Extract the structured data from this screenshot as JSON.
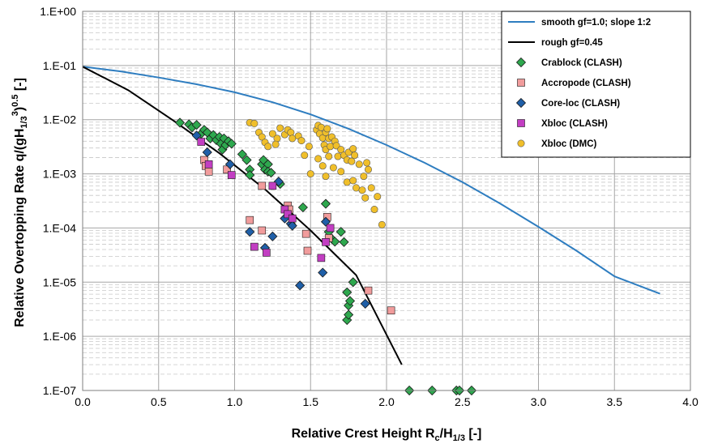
{
  "chart_data": {
    "type": "scatter",
    "xlabel": "Relative Crest Height  R",
    "xlabel_sub": "c",
    "xlabel_mid": "/H",
    "xlabel_sub2": "1/3",
    "xlabel_unit": " [-]",
    "ylabel_main": "Relative Overtopping Rate  q/(gH",
    "ylabel_sub": "1/3",
    "ylabel_sup": "3",
    "ylabel_close": ")",
    "ylabel_sup2": "0.5",
    "ylabel_unit": " [-]",
    "xlim": [
      0,
      4
    ],
    "ylim": [
      1e-07,
      1
    ],
    "y_scale": "log",
    "grid": true,
    "legend_position": "top-right",
    "x_ticks": [
      "0.0",
      "0.5",
      "1.0",
      "1.5",
      "2.0",
      "2.5",
      "3.0",
      "3.5",
      "4.0"
    ],
    "y_ticks": [
      "1.E-07",
      "1.E-06",
      "1.E-05",
      "1.E-04",
      "1.E-03",
      "1.E-02",
      "1.E-01",
      "1.E+00"
    ],
    "series": [
      {
        "name": "smooth gf=1.0; slope 1:2",
        "kind": "line",
        "color": "#2e7dc0",
        "points": [
          [
            0,
            0.095
          ],
          [
            0.25,
            0.078
          ],
          [
            0.5,
            0.06
          ],
          [
            0.75,
            0.045
          ],
          [
            1.0,
            0.032
          ],
          [
            1.25,
            0.021
          ],
          [
            1.5,
            0.0125
          ],
          [
            1.75,
            0.0068
          ],
          [
            2.0,
            0.0034
          ],
          [
            2.25,
            0.0016
          ],
          [
            2.5,
            0.0007
          ],
          [
            2.75,
            0.00028
          ],
          [
            3.0,
            0.000105
          ],
          [
            3.25,
            3.8e-05
          ],
          [
            3.5,
            1.28e-05
          ],
          [
            3.8,
            6.1e-06
          ]
        ]
      },
      {
        "name": "rough gf=0.45",
        "kind": "line",
        "color": "#000000",
        "points": [
          [
            0,
            0.095
          ],
          [
            0.3,
            0.035
          ],
          [
            0.6,
            0.0095
          ],
          [
            0.9,
            0.0024
          ],
          [
            1.2,
            0.00052
          ],
          [
            1.5,
            9e-05
          ],
          [
            1.8,
            1.35e-05
          ],
          [
            2.1,
            3e-07
          ]
        ]
      },
      {
        "name": "Crablock (CLASH)",
        "kind": "marker",
        "marker": "diamond",
        "color": "#2ea84e",
        "points": [
          [
            0.64,
            0.0088
          ],
          [
            0.7,
            0.0082
          ],
          [
            0.72,
            0.0072
          ],
          [
            0.75,
            0.008
          ],
          [
            0.78,
            0.0055
          ],
          [
            0.8,
            0.0065
          ],
          [
            0.82,
            0.0058
          ],
          [
            0.84,
            0.0045
          ],
          [
            0.86,
            0.0052
          ],
          [
            0.88,
            0.0042
          ],
          [
            0.9,
            0.0048
          ],
          [
            0.91,
            0.0036
          ],
          [
            0.92,
            0.0028
          ],
          [
            0.93,
            0.0045
          ],
          [
            0.94,
            0.0034
          ],
          [
            0.96,
            0.004
          ],
          [
            0.98,
            0.0036
          ],
          [
            1.05,
            0.0023
          ],
          [
            1.08,
            0.0018
          ],
          [
            1.1,
            0.0012
          ],
          [
            1.1,
            0.00095
          ],
          [
            1.18,
            0.0015
          ],
          [
            1.19,
            0.0018
          ],
          [
            1.2,
            0.0012
          ],
          [
            1.22,
            0.0015
          ],
          [
            1.22,
            0.0011
          ],
          [
            1.24,
            0.00105
          ],
          [
            1.3,
            0.00065
          ],
          [
            1.45,
            0.00024
          ],
          [
            1.6,
            0.00028
          ],
          [
            1.62,
            8.5e-05
          ],
          [
            1.64,
            6.3e-05
          ],
          [
            1.66,
            5.6e-05
          ],
          [
            1.7,
            8.5e-05
          ],
          [
            1.72,
            5.5e-05
          ],
          [
            1.74,
            6.5e-06
          ],
          [
            1.75,
            3.7e-06
          ],
          [
            1.76,
            4.5e-06
          ],
          [
            1.74,
            2e-06
          ],
          [
            1.75,
            2.5e-06
          ],
          [
            1.78,
            1e-05
          ],
          [
            2.15,
            1e-07
          ],
          [
            2.3,
            1e-07
          ],
          [
            2.46,
            1e-07
          ],
          [
            2.48,
            1e-07
          ],
          [
            2.56,
            1e-07
          ]
        ]
      },
      {
        "name": "Accropode (CLASH)",
        "kind": "marker",
        "marker": "square",
        "color": "#f19c9c",
        "points": [
          [
            0.8,
            0.0018
          ],
          [
            0.81,
            0.0014
          ],
          [
            0.83,
            0.0011
          ],
          [
            0.95,
            0.0012
          ],
          [
            1.1,
            0.00014
          ],
          [
            1.18,
            9e-05
          ],
          [
            1.18,
            0.0006
          ],
          [
            1.35,
            0.00026
          ],
          [
            1.36,
            0.00022
          ],
          [
            1.47,
            7.8e-05
          ],
          [
            1.48,
            3.8e-05
          ],
          [
            1.61,
            0.00016
          ],
          [
            1.62,
            6.5e-05
          ],
          [
            1.88,
            7e-06
          ],
          [
            2.03,
            3e-06
          ]
        ]
      },
      {
        "name": "Core-loc (CLASH)",
        "kind": "marker",
        "marker": "diamond",
        "color": "#1f5fa8",
        "points": [
          [
            0.75,
            0.0051
          ],
          [
            0.82,
            0.0025
          ],
          [
            0.97,
            0.0015
          ],
          [
            1.1,
            8.5e-05
          ],
          [
            1.2,
            4.3e-05
          ],
          [
            1.25,
            7e-05
          ],
          [
            1.29,
            0.00072
          ],
          [
            1.33,
            0.00015
          ],
          [
            1.37,
            0.00012
          ],
          [
            1.38,
            0.00011
          ],
          [
            1.43,
            8.7e-06
          ],
          [
            1.58,
            1.5e-05
          ],
          [
            1.6,
            0.00013
          ],
          [
            1.86,
            4e-06
          ]
        ]
      },
      {
        "name": "Xbloc (CLASH)",
        "kind": "marker",
        "marker": "square",
        "color": "#c23ec2",
        "points": [
          [
            0.78,
            0.0039
          ],
          [
            0.83,
            0.0015
          ],
          [
            0.98,
            0.00095
          ],
          [
            1.13,
            4.5e-05
          ],
          [
            1.21,
            3.5e-05
          ],
          [
            1.25,
            0.0006
          ],
          [
            1.33,
            0.00022
          ],
          [
            1.35,
            0.00018
          ],
          [
            1.38,
            0.00015
          ],
          [
            1.57,
            2.8e-05
          ],
          [
            1.6,
            5.5e-05
          ],
          [
            1.63,
            0.0001
          ]
        ]
      },
      {
        "name": "Xbloc (DMC)",
        "kind": "marker",
        "marker": "circle",
        "color": "#f0bf2a",
        "points": [
          [
            1.1,
            0.0088
          ],
          [
            1.13,
            0.0085
          ],
          [
            1.16,
            0.0058
          ],
          [
            1.18,
            0.0048
          ],
          [
            1.2,
            0.0038
          ],
          [
            1.22,
            0.0032
          ],
          [
            1.25,
            0.0055
          ],
          [
            1.28,
            0.0045
          ],
          [
            1.27,
            0.0035
          ],
          [
            1.3,
            0.007
          ],
          [
            1.33,
            0.0053
          ],
          [
            1.35,
            0.0065
          ],
          [
            1.37,
            0.0058
          ],
          [
            1.38,
            0.0045
          ],
          [
            1.42,
            0.005
          ],
          [
            1.44,
            0.0041
          ],
          [
            1.46,
            0.0022
          ],
          [
            1.49,
            0.0032
          ],
          [
            1.54,
            0.0065
          ],
          [
            1.55,
            0.0078
          ],
          [
            1.56,
            0.0055
          ],
          [
            1.57,
            0.0072
          ],
          [
            1.58,
            0.0046
          ],
          [
            1.59,
            0.0034
          ],
          [
            1.6,
            0.0028
          ],
          [
            1.6,
            0.0058
          ],
          [
            1.61,
            0.0068
          ],
          [
            1.62,
            0.0045
          ],
          [
            1.63,
            0.0032
          ],
          [
            1.64,
            0.0048
          ],
          [
            1.66,
            0.004
          ],
          [
            1.67,
            0.0033
          ],
          [
            1.68,
            0.0021
          ],
          [
            1.7,
            0.0028
          ],
          [
            1.72,
            0.0022
          ],
          [
            1.74,
            0.0018
          ],
          [
            1.75,
            0.0025
          ],
          [
            1.77,
            0.0017
          ],
          [
            1.79,
            0.0022
          ],
          [
            1.82,
            0.0015
          ],
          [
            1.85,
            0.0009
          ],
          [
            1.86,
            0.00036
          ],
          [
            1.88,
            0.0012
          ],
          [
            1.9,
            0.00055
          ],
          [
            1.92,
            0.00022
          ],
          [
            1.94,
            0.00038
          ],
          [
            1.97,
            0.000115
          ],
          [
            1.5,
            0.001
          ],
          [
            1.6,
            0.0009
          ],
          [
            1.55,
            0.0019
          ],
          [
            1.58,
            0.0014
          ],
          [
            1.65,
            0.0013
          ],
          [
            1.7,
            0.0011
          ],
          [
            1.74,
            0.0007
          ],
          [
            1.78,
            0.00075
          ],
          [
            1.8,
            0.00055
          ],
          [
            1.84,
            0.0005
          ],
          [
            1.62,
            0.0021
          ],
          [
            1.78,
            0.0029
          ],
          [
            1.87,
            0.0016
          ]
        ]
      }
    ]
  }
}
